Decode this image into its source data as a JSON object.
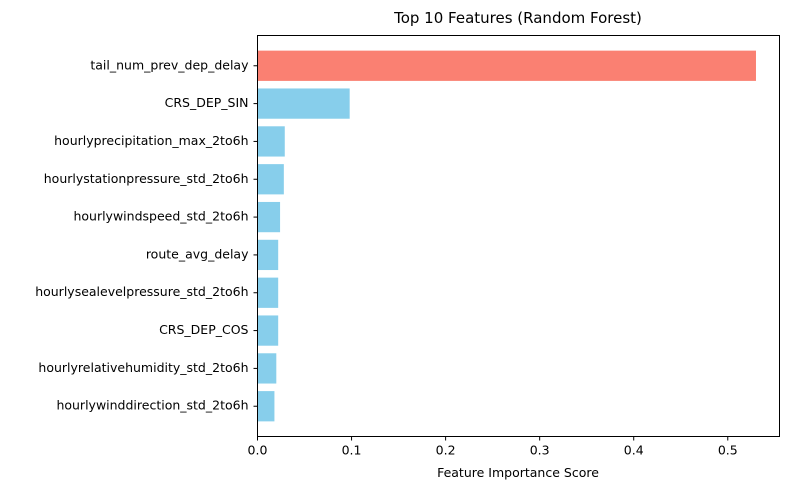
{
  "chart_data": {
    "type": "bar",
    "orientation": "horizontal",
    "title": "Top 10 Features (Random Forest)",
    "xlabel": "Feature Importance Score",
    "ylabel": "",
    "xlim": [
      0,
      0.555
    ],
    "xticks": [
      0.0,
      0.1,
      0.2,
      0.3,
      0.4,
      0.5
    ],
    "xtick_labels": [
      "0.0",
      "0.1",
      "0.2",
      "0.3",
      "0.4",
      "0.5"
    ],
    "grid": false,
    "categories": [
      "tail_num_prev_dep_delay",
      "CRS_DEP_SIN",
      "hourlyprecipitation_max_2to6h",
      "hourlystationpressure_std_2to6h",
      "hourlywindspeed_std_2to6h",
      "route_avg_delay",
      "hourlysealevelpressure_std_2to6h",
      "CRS_DEP_COS",
      "hourlyrelativehumidity_std_2to6h",
      "hourlywinddirection_std_2to6h"
    ],
    "values": [
      0.53,
      0.098,
      0.029,
      0.028,
      0.024,
      0.022,
      0.022,
      0.022,
      0.02,
      0.018
    ],
    "colors": {
      "highlight": "#fa8072",
      "default": "#87ceeb"
    },
    "highlight_index": 0
  }
}
